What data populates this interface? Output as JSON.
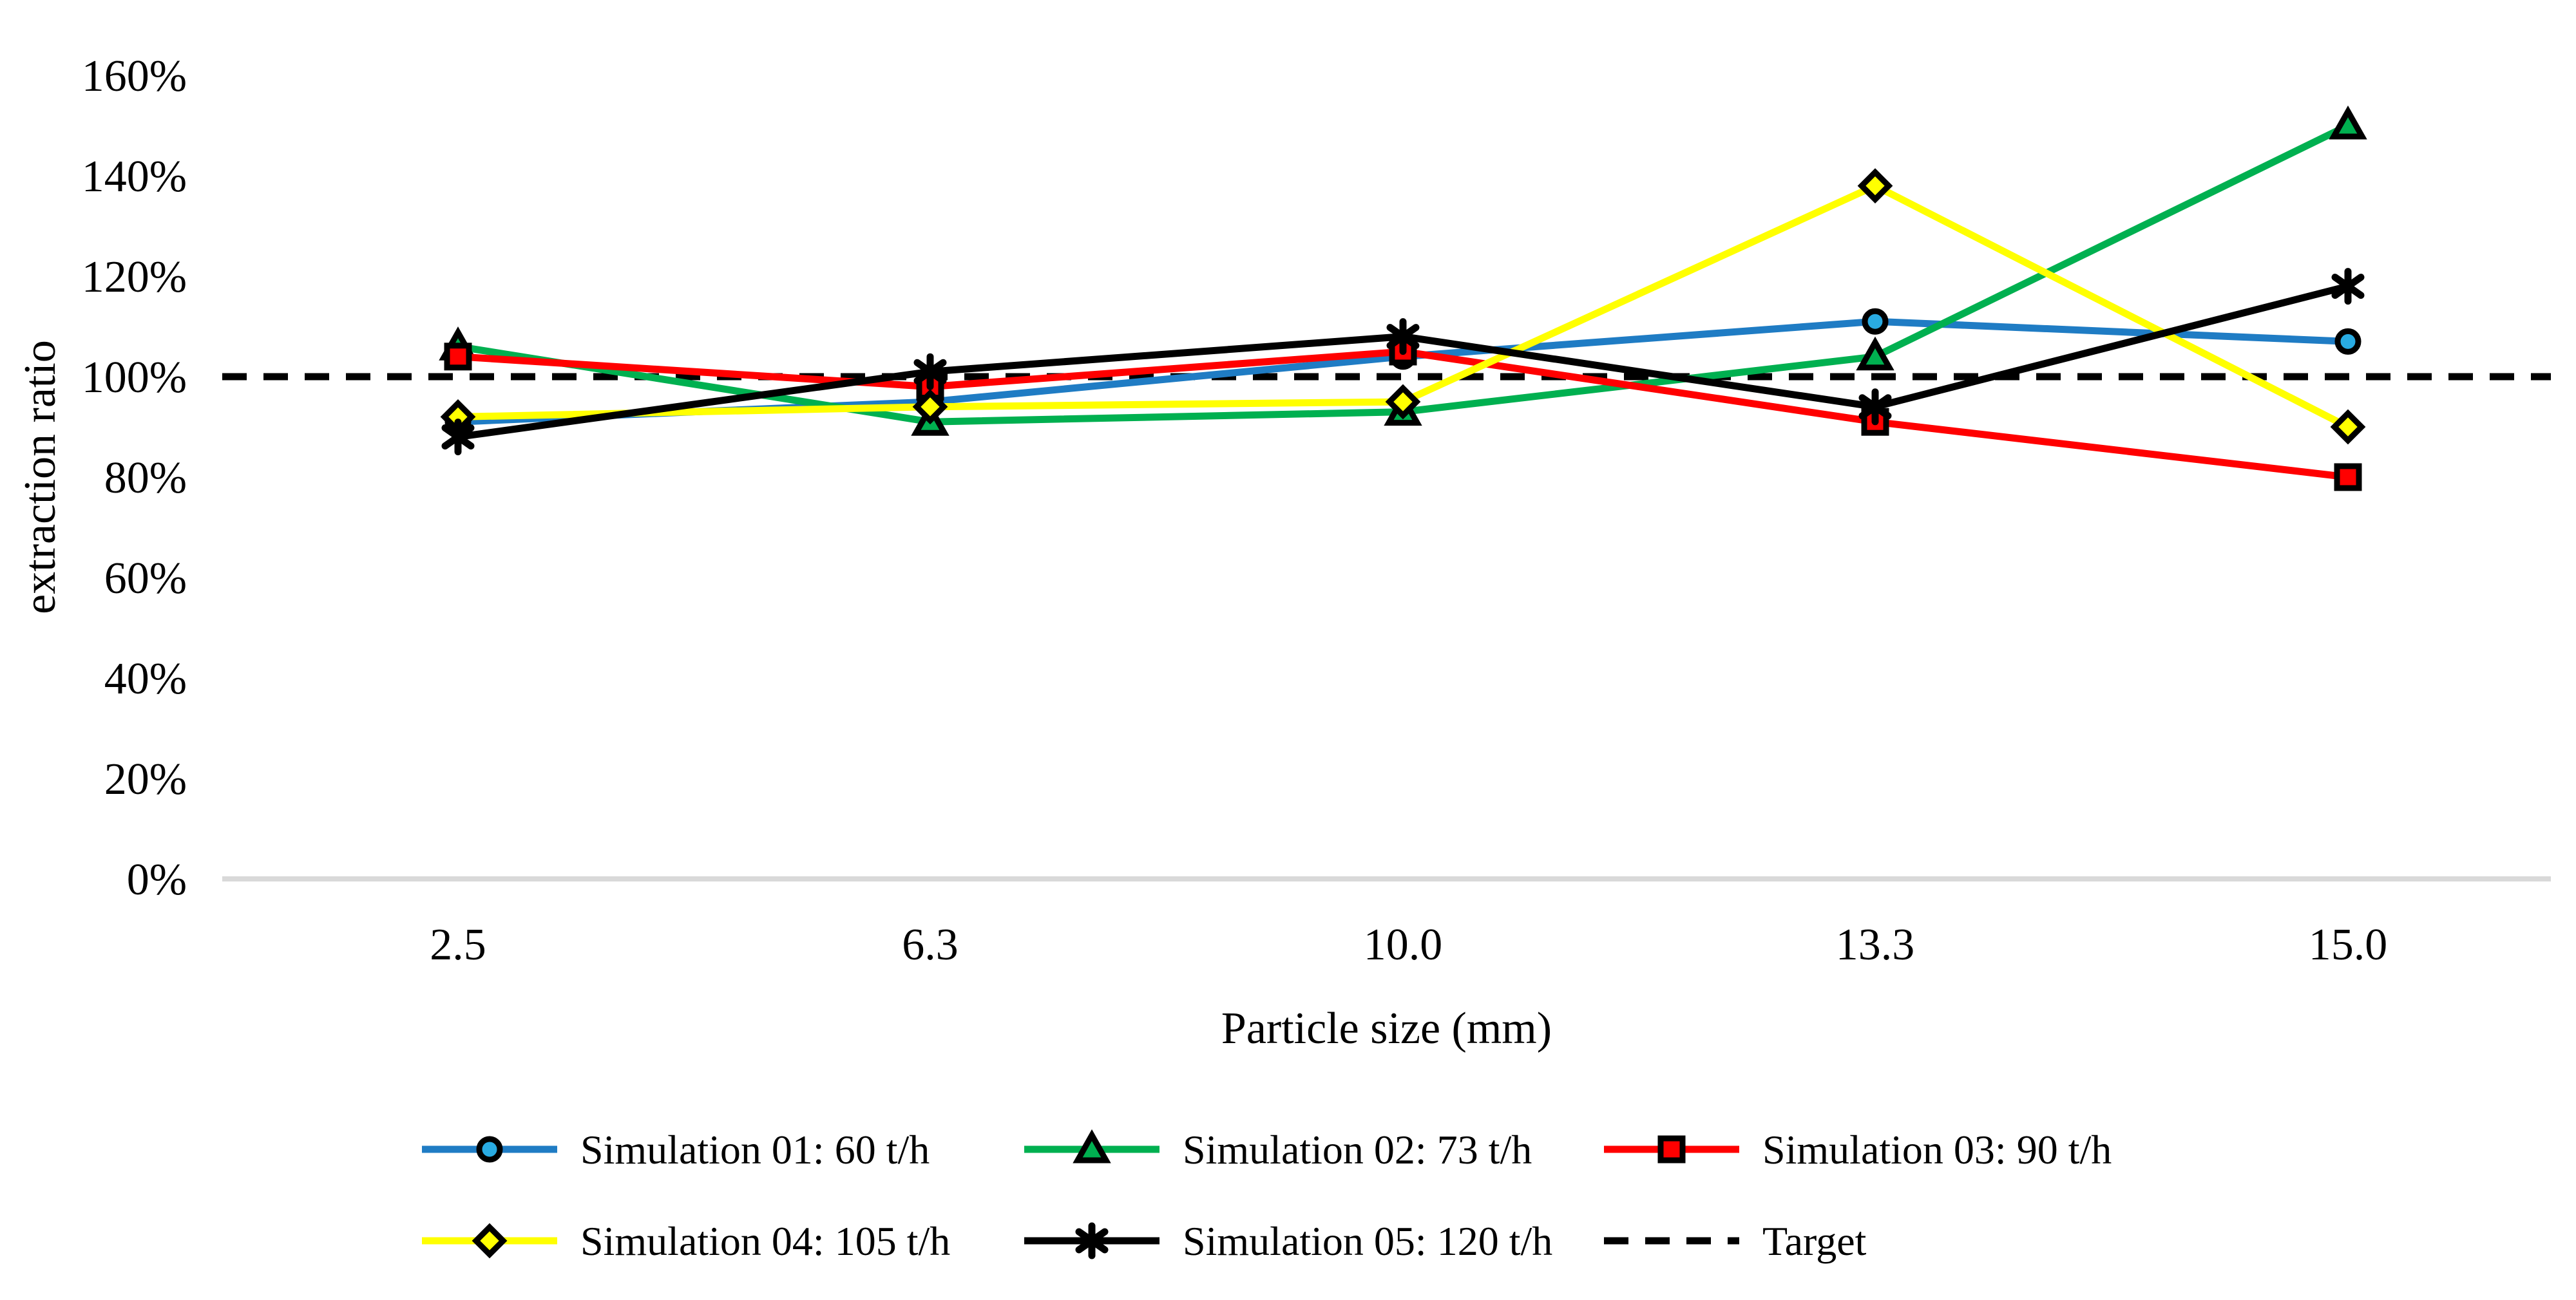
{
  "figure": {
    "background": "#FFFFFF",
    "axis_line_color": "#D9D9D9",
    "text_color": "#000000"
  },
  "chart_data": {
    "type": "line",
    "title": "",
    "xlabel": "Particle size (mm)",
    "ylabel": "extraction ratio",
    "categories": [
      "2.5",
      "6.3",
      "10.0",
      "13.3",
      "15.0"
    ],
    "y_ticks": [
      "0%",
      "20%",
      "40%",
      "60%",
      "80%",
      "100%",
      "120%",
      "140%",
      "160%"
    ],
    "ylim": [
      0,
      160
    ],
    "y_tick_step": 20,
    "grid": "off",
    "legend_position": "bottom",
    "series": [
      {
        "name": "Simulation 01: 60 t/h",
        "marker": "circle",
        "line_color": "#1F7CC4",
        "marker_fill": "#29ABE2",
        "values": [
          91,
          95,
          104,
          111,
          107
        ]
      },
      {
        "name": "Simulation 02: 73 t/h",
        "marker": "triangle",
        "line_color": "#00B050",
        "marker_fill": "#00B050",
        "values": [
          106,
          91,
          93,
          104,
          150
        ]
      },
      {
        "name": "Simulation 03: 90 t/h",
        "marker": "square",
        "line_color": "#FF0000",
        "marker_fill": "#FF0000",
        "values": [
          104,
          98,
          105,
          91,
          80
        ]
      },
      {
        "name": "Simulation 04: 105 t/h",
        "marker": "diamond",
        "line_color": "#FFFF00",
        "marker_fill": "#FFFF00",
        "values": [
          92,
          94,
          95,
          138,
          90
        ]
      },
      {
        "name": "Simulation 05: 120 t/h",
        "marker": "asterisk",
        "line_color": "#000000",
        "marker_fill": "#000000",
        "values": [
          88,
          101,
          108,
          94,
          118
        ]
      }
    ],
    "target": {
      "name": "Target",
      "value": 100,
      "style": "dashed",
      "color": "#000000"
    }
  }
}
